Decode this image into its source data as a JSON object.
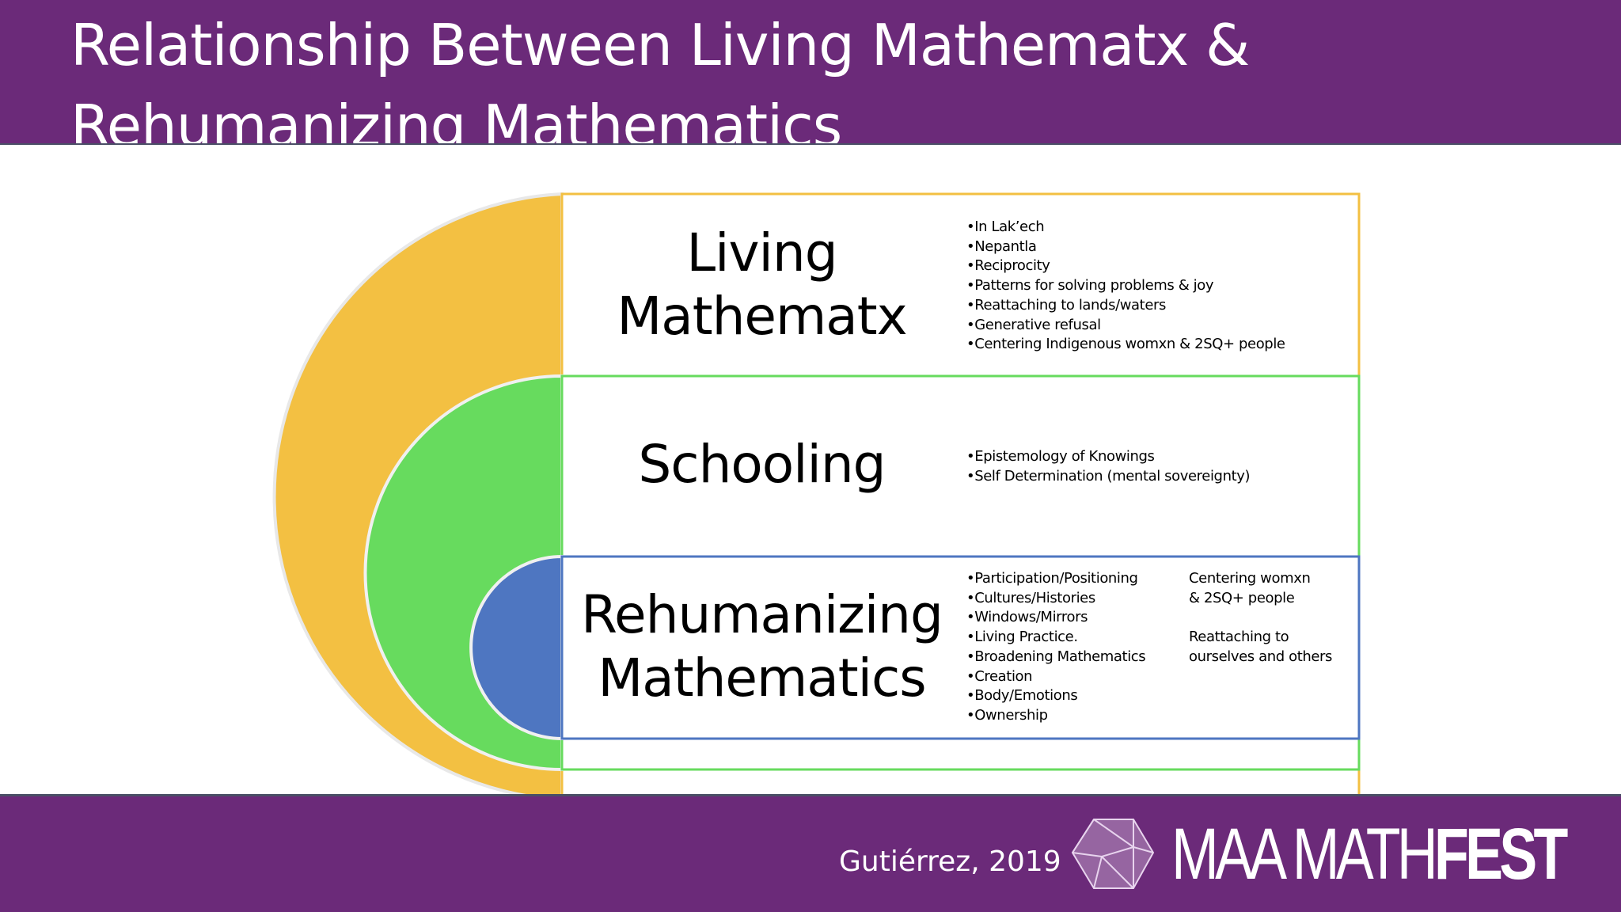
{
  "title": [
    "Relationship Between Living Mathematx &",
    "Rehumanizing Mathematics"
  ],
  "colors": {
    "purple": "#6b2a79",
    "yellow": "#f3c042",
    "green": "#67db5e",
    "blue": "#4e76c1"
  },
  "sections": [
    {
      "heading": [
        "Living",
        "Mathematx"
      ],
      "items": [
        "In Lak’ech",
        "Nepantla",
        "Reciprocity",
        "Patterns for solving problems & joy",
        "Reattaching to lands/waters",
        "Generative refusal",
        "Centering Indigenous womxn & 2SQ+ people"
      ]
    },
    {
      "heading": [
        "Schooling"
      ],
      "items": [
        "Epistemology of Knowings",
        "Self Determination (mental sovereignty)"
      ]
    },
    {
      "heading": [
        "Rehumanizing",
        "Mathematics"
      ],
      "items": [
        "Participation/Positioning",
        "Cultures/Histories",
        "Windows/Mirrors",
        "Living Practice.",
        "Broadening Mathematics",
        "Creation",
        "Body/Emotions",
        "Ownership"
      ],
      "side": [
        [
          "Centering womxn",
          "& 2SQ+ people"
        ],
        [
          "Reattaching to",
          "ourselves and others"
        ]
      ]
    }
  ],
  "footer": {
    "credit": "Gutiérrez, 2019",
    "logo": "MAA MATHFEST",
    "logo_parts": [
      "MAA MATH",
      "FEST"
    ]
  }
}
